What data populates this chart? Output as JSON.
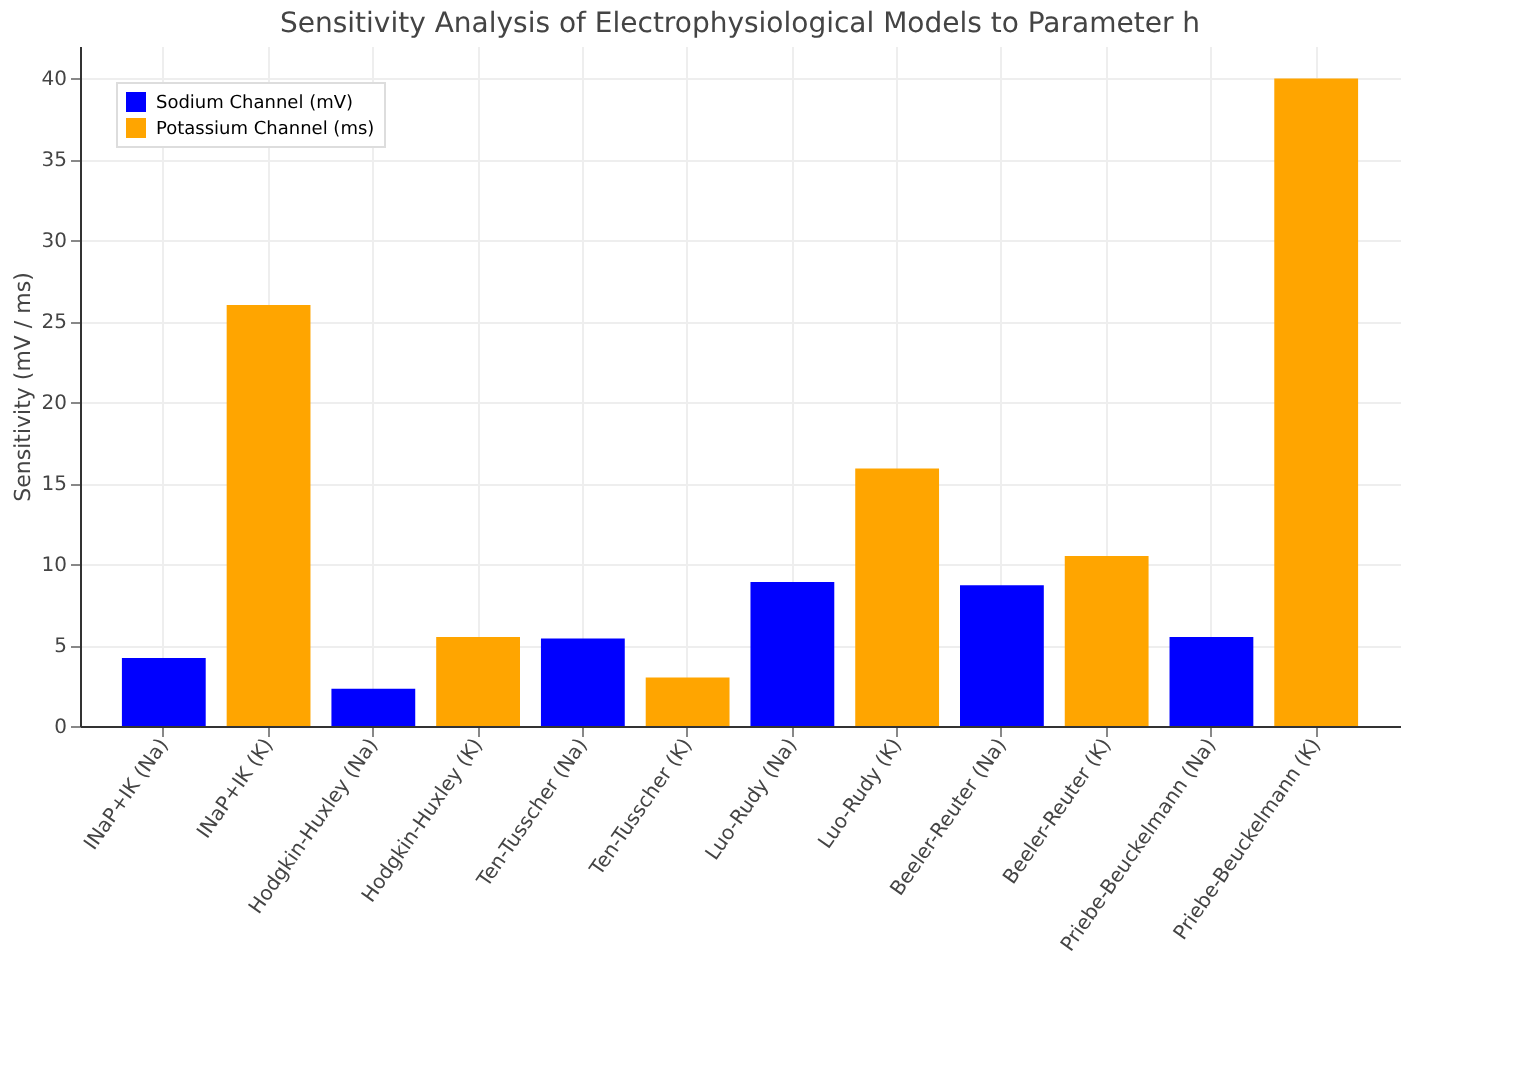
{
  "chart_data": {
    "type": "bar",
    "title": "Sensitivity Analysis of Electrophysiological Models to Parameter h",
    "ylabel": "Sensitivity (mV / ms)",
    "categories": [
      "INaP+IK (Na)",
      "INaP+IK (K)",
      "Hodgkin-Huxley (Na)",
      "Hodgkin-Huxley (K)",
      "Ten-Tusscher (Na)",
      "Ten-Tusscher (K)",
      "Luo-Rudy (Na)",
      "Luo-Rudy (K)",
      "Beeler-Reuter (Na)",
      "Beeler-Reuter (K)",
      "Priebe-Beuckelmann (Na)",
      "Priebe-Beuckelmann (K)"
    ],
    "series": [
      {
        "name": "Sodium Channel (mV)",
        "color": "#0000ff",
        "values": [
          4.2,
          null,
          2.3,
          null,
          5.4,
          null,
          8.9,
          null,
          8.7,
          null,
          5.5,
          null
        ]
      },
      {
        "name": "Potassium Channel (ms)",
        "color": "#ffa500",
        "values": [
          null,
          26,
          null,
          5.5,
          null,
          3.0,
          null,
          15.9,
          null,
          10.5,
          null,
          40
        ]
      }
    ],
    "ylim": [
      0,
      42
    ],
    "yticks": [
      0,
      5,
      10,
      15,
      20,
      25,
      30,
      35,
      40
    ],
    "grid": true,
    "legend": "top left"
  }
}
